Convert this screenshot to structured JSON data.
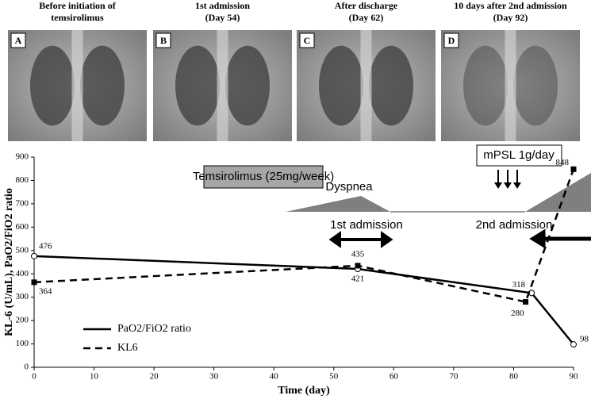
{
  "panels": [
    {
      "letter": "A",
      "caption": [
        "Before initiation of",
        "temsirolimus"
      ]
    },
    {
      "letter": "B",
      "caption": [
        "1st admission",
        "(Day 54)"
      ]
    },
    {
      "letter": "C",
      "caption": [
        "After discharge",
        "(Day 62)"
      ]
    },
    {
      "letter": "D",
      "caption": [
        "10 days after 2nd admission",
        "(Day 92)"
      ]
    }
  ],
  "chart_data": {
    "type": "line",
    "x_label": "Time (day)",
    "y_label": "KL-6 (U/mL), PaO2/FiO2 ratio",
    "xlim": [
      0,
      90
    ],
    "xticks": [
      0,
      10,
      20,
      30,
      40,
      50,
      60,
      70,
      80,
      90
    ],
    "ylim": [
      0,
      900
    ],
    "yticks": [
      0,
      100,
      200,
      300,
      400,
      500,
      600,
      700,
      800,
      900
    ],
    "legend": "lower left",
    "series": [
      {
        "name": "PaO2/FiO2 ratio",
        "color": "#000000",
        "dash": "solid",
        "marker": "circle",
        "x": [
          0,
          54,
          83,
          90
        ],
        "values": [
          476,
          421,
          318,
          98
        ]
      },
      {
        "name": "KL6",
        "color": "#000000",
        "dash": "dashed",
        "marker": "square",
        "x": [
          0,
          54,
          82,
          90
        ],
        "values": [
          364,
          435,
          280,
          848
        ]
      }
    ],
    "annotations": [
      "Temsirolimus  (25mg/week)",
      "Dyspnea",
      "1st admission",
      "2nd admission",
      "mPSL 1g/day"
    ]
  }
}
